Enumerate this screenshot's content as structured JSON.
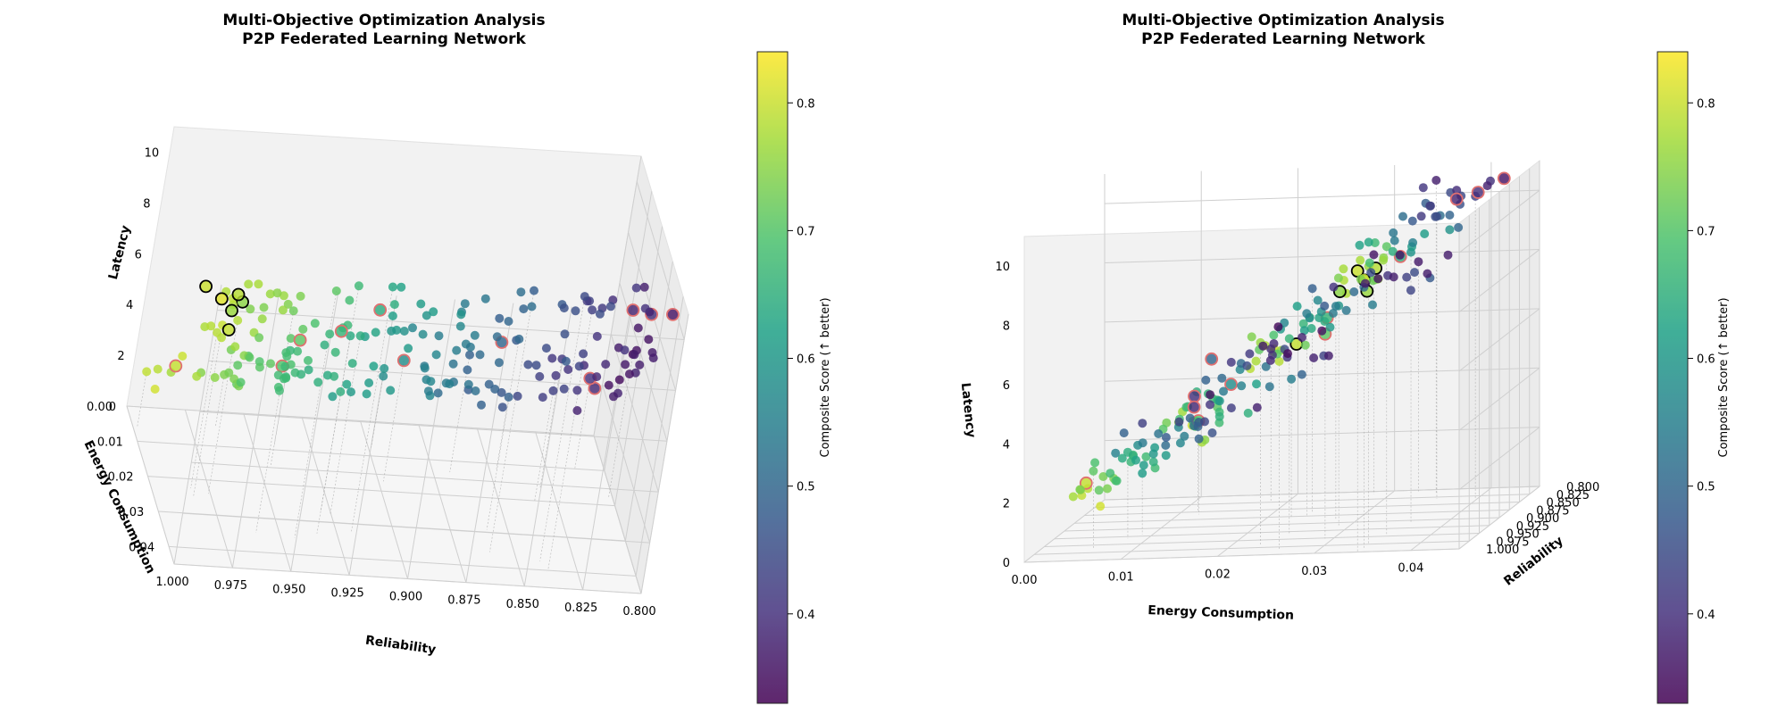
{
  "chart_data": [
    {
      "type": "scatter",
      "title": "Multi-Objective Optimization Analysis\nP2P Federated Learning Network",
      "xlabel": "Reliability",
      "ylabel": "Energy Consumption",
      "zlabel": "Latency",
      "xlim": [
        0.8,
        1.0
      ],
      "ylim": [
        0.0,
        0.045
      ],
      "zlim": [
        0,
        11
      ],
      "x_ticks": [
        "1.000",
        "0.975",
        "0.950",
        "0.925",
        "0.900",
        "0.875",
        "0.850",
        "0.825",
        "0.800"
      ],
      "y_ticks": [
        "0.00",
        "0.01",
        "0.02",
        "0.03",
        "0.04"
      ],
      "z_ticks": [
        "0",
        "2",
        "4",
        "6",
        "8",
        "10"
      ],
      "grid": true,
      "colormap": "viridis",
      "colorbar_label": "Composite Score (↑ better)",
      "colorbar_ticks": [
        "0.4",
        "0.5",
        "0.6",
        "0.7",
        "0.8"
      ],
      "colorbar_range": [
        0.33,
        0.84
      ],
      "highlight_edge_color": "#e07070",
      "pareto_edge_color": "#000000"
    },
    {
      "type": "scatter",
      "title": "Multi-Objective Optimization Analysis\nP2P Federated Learning Network",
      "xlabel": "Energy Consumption",
      "ylabel": "Reliability",
      "zlabel": "Latency",
      "xlim": [
        0.0,
        0.045
      ],
      "ylim": [
        0.8,
        1.0
      ],
      "zlim": [
        0,
        11
      ],
      "x_ticks": [
        "0.00",
        "0.01",
        "0.02",
        "0.03",
        "0.04"
      ],
      "y_ticks": [
        "0.800",
        "0.825",
        "0.850",
        "0.875",
        "0.900",
        "0.925",
        "0.950",
        "0.975",
        "1.000"
      ],
      "z_ticks": [
        "0",
        "2",
        "4",
        "6",
        "8",
        "10"
      ],
      "grid": true,
      "colormap": "viridis",
      "colorbar_label": "Composite Score (↑ better)",
      "colorbar_ticks": [
        "0.4",
        "0.5",
        "0.6",
        "0.7",
        "0.8"
      ],
      "colorbar_range": [
        0.33,
        0.84
      ]
    }
  ]
}
